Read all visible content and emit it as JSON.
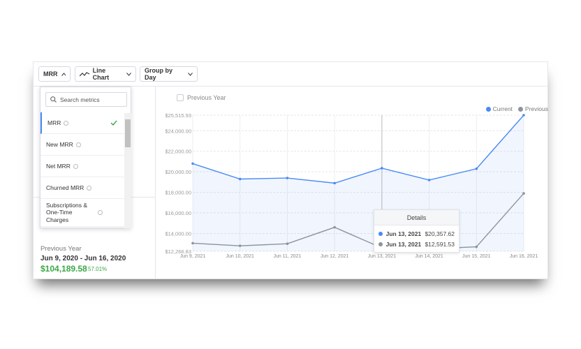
{
  "toolbar": {
    "metric": "MRR",
    "chart_type": "Line Chart",
    "grouping": "Group by Day"
  },
  "dropdown": {
    "search_placeholder": "Search metrics",
    "items": [
      "MRR",
      "New MRR",
      "Net MRR",
      "Churned MRR",
      "Subscriptions & One-Time Charges"
    ],
    "selected": 0
  },
  "summary": {
    "label": "Previous Year",
    "range": "Jun 9, 2020 - Jun 16, 2020",
    "value": "$104,189.58",
    "change": "57.01%"
  },
  "chart_data": {
    "type": "line",
    "compare_label": "Previous Year",
    "x": [
      "Jun 9, 2021",
      "Jun 10, 2021",
      "Jun 11, 2021",
      "Jun 12, 2021",
      "Jun 13, 2021",
      "Jun 14, 2021",
      "Jun 15, 2021",
      "Jun 16, 2021"
    ],
    "series": [
      {
        "name": "Current",
        "color": "#4a8af4",
        "values": [
          20800,
          19300,
          19400,
          18900,
          20357.62,
          19200,
          20300,
          25515.93
        ],
        "value_labels": [
          null,
          null,
          null,
          null,
          "$20,357.62",
          null,
          null,
          null
        ]
      },
      {
        "name": "Previous",
        "color": "#8d939b",
        "values": [
          13050,
          12800,
          13000,
          14600,
          12591.53,
          12500,
          12700,
          17900
        ],
        "value_labels": [
          null,
          null,
          null,
          null,
          "$12,591.53",
          null,
          null,
          null
        ]
      }
    ],
    "ylim": [
      12266.83,
      25515.93
    ],
    "yticks": [
      {
        "value": 12266.83,
        "label": "$12,266.83"
      },
      {
        "value": 14000,
        "label": "$14,000.00"
      },
      {
        "value": 16000,
        "label": "$16,000.00"
      },
      {
        "value": 18000,
        "label": "$18,000.00"
      },
      {
        "value": 20000,
        "label": "$20,000.00"
      },
      {
        "value": 22000,
        "label": "$22,000.00"
      },
      {
        "value": 24000,
        "label": "$24,000.00"
      },
      {
        "value": 25515.93,
        "label": "$25,515.93"
      }
    ],
    "grid": true,
    "legend": "top-right",
    "area": true,
    "tooltip": {
      "title": "Details",
      "index": 4
    }
  }
}
